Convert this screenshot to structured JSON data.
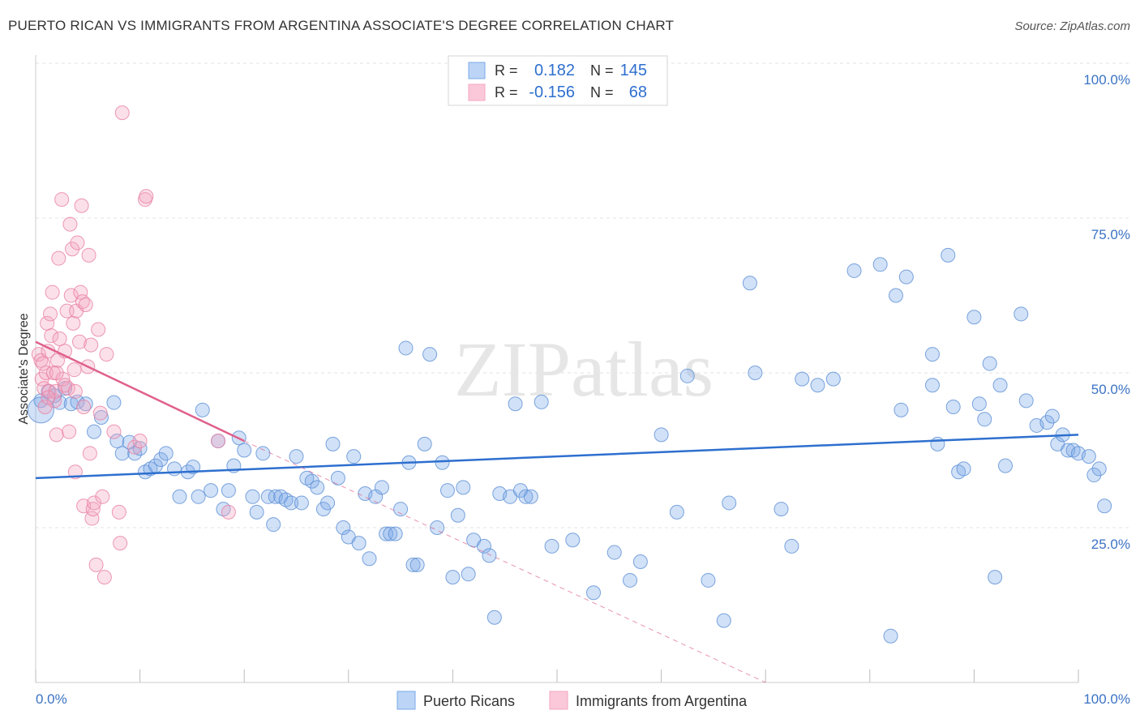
{
  "chart_data": {
    "type": "scatter",
    "title": "PUERTO RICAN VS IMMIGRANTS FROM ARGENTINA ASSOCIATE'S DEGREE CORRELATION CHART",
    "source": "Source: ZipAtlas.com",
    "xlabel": "",
    "ylabel": "Associate's Degree",
    "xlim": [
      0,
      100
    ],
    "ylim": [
      0,
      100
    ],
    "x_tick_labels": {
      "min": "0.0%",
      "max": "100.0%"
    },
    "y_tick_labels": [
      "25.0%",
      "50.0%",
      "75.0%",
      "100.0%"
    ],
    "y_ticks": [
      25,
      50,
      75,
      100
    ],
    "grid": true,
    "watermark": "ZIPatlas",
    "legend": {
      "position": "top-center",
      "rows": [
        {
          "r_label": "R =",
          "r_value": "0.182",
          "n_label": "N =",
          "n_value": "145"
        },
        {
          "r_label": "R =",
          "r_value": "-0.156",
          "n_label": "N =",
          "n_value": "68"
        }
      ]
    },
    "series": [
      {
        "name": "Puerto Ricans",
        "color": "#7aaae8",
        "stroke": "#5b8fd6",
        "trend_color": "#2e6fcf",
        "trend": {
          "x": [
            0,
            100
          ],
          "y": [
            33.0,
            40.0
          ]
        },
        "points": [
          [
            0.5,
            45.5
          ],
          [
            1.2,
            47.0
          ],
          [
            1.8,
            46.3
          ],
          [
            2.3,
            45.2
          ],
          [
            2.8,
            47.5
          ],
          [
            3.4,
            45.0
          ],
          [
            4.0,
            45.3
          ],
          [
            4.8,
            45.0
          ],
          [
            5.6,
            40.5
          ],
          [
            6.3,
            42.8
          ],
          [
            7.5,
            45.2
          ],
          [
            7.8,
            39.0
          ],
          [
            8.3,
            37.0
          ],
          [
            9.0,
            38.8
          ],
          [
            9.5,
            37.0
          ],
          [
            10.0,
            37.8
          ],
          [
            10.5,
            34.0
          ],
          [
            11.0,
            34.5
          ],
          [
            11.5,
            35.0
          ],
          [
            12.0,
            36.0
          ],
          [
            12.5,
            37.0
          ],
          [
            13.3,
            34.5
          ],
          [
            13.8,
            30.0
          ],
          [
            14.6,
            34.0
          ],
          [
            15.1,
            34.8
          ],
          [
            15.6,
            30.0
          ],
          [
            16.0,
            44.0
          ],
          [
            16.8,
            31.0
          ],
          [
            17.5,
            39.0
          ],
          [
            18.0,
            28.0
          ],
          [
            18.5,
            31.0
          ],
          [
            19.0,
            35.0
          ],
          [
            19.5,
            39.5
          ],
          [
            20.0,
            37.5
          ],
          [
            20.8,
            30.0
          ],
          [
            21.2,
            27.5
          ],
          [
            21.8,
            37.0
          ],
          [
            22.3,
            30.0
          ],
          [
            22.8,
            25.5
          ],
          [
            23.0,
            30.0
          ],
          [
            23.5,
            30.0
          ],
          [
            24.0,
            29.5
          ],
          [
            24.5,
            29.0
          ],
          [
            25.0,
            36.5
          ],
          [
            25.5,
            29.0
          ],
          [
            26.0,
            33.0
          ],
          [
            26.5,
            32.5
          ],
          [
            27.0,
            31.5
          ],
          [
            27.6,
            28.0
          ],
          [
            28.0,
            29.0
          ],
          [
            28.5,
            38.5
          ],
          [
            29.0,
            33.0
          ],
          [
            29.5,
            25.0
          ],
          [
            30.0,
            23.5
          ],
          [
            30.5,
            36.5
          ],
          [
            31.0,
            22.5
          ],
          [
            31.6,
            30.5
          ],
          [
            32.0,
            20.0
          ],
          [
            32.6,
            30.0
          ],
          [
            33.2,
            31.5
          ],
          [
            33.6,
            24.0
          ],
          [
            34.0,
            24.0
          ],
          [
            34.5,
            24.0
          ],
          [
            35.0,
            28.0
          ],
          [
            35.5,
            54.0
          ],
          [
            35.8,
            35.5
          ],
          [
            36.2,
            19.0
          ],
          [
            36.6,
            19.0
          ],
          [
            37.3,
            38.5
          ],
          [
            37.8,
            53.0
          ],
          [
            38.5,
            25.0
          ],
          [
            39.0,
            35.5
          ],
          [
            39.5,
            31.0
          ],
          [
            40.0,
            17.0
          ],
          [
            40.5,
            27.0
          ],
          [
            41.0,
            31.5
          ],
          [
            41.5,
            17.5
          ],
          [
            42.0,
            23.0
          ],
          [
            43.0,
            22.0
          ],
          [
            43.5,
            20.5
          ],
          [
            44.0,
            10.5
          ],
          [
            44.5,
            30.5
          ],
          [
            45.5,
            30.0
          ],
          [
            46.0,
            45.0
          ],
          [
            46.5,
            31.0
          ],
          [
            47.0,
            30.0
          ],
          [
            47.5,
            30.0
          ],
          [
            48.5,
            45.3
          ],
          [
            49.5,
            22.0
          ],
          [
            51.5,
            23.0
          ],
          [
            53.5,
            14.5
          ],
          [
            55.5,
            21.0
          ],
          [
            57.0,
            16.5
          ],
          [
            58.0,
            19.5
          ],
          [
            60.0,
            40.0
          ],
          [
            61.5,
            27.5
          ],
          [
            62.5,
            49.5
          ],
          [
            64.5,
            16.5
          ],
          [
            66.0,
            10.0
          ],
          [
            66.5,
            29.0
          ],
          [
            68.5,
            64.5
          ],
          [
            69.0,
            50.0
          ],
          [
            71.5,
            28.0
          ],
          [
            72.5,
            22.0
          ],
          [
            73.5,
            49.0
          ],
          [
            75.0,
            48.0
          ],
          [
            76.5,
            49.0
          ],
          [
            78.5,
            66.5
          ],
          [
            81.0,
            67.5
          ],
          [
            82.0,
            7.5
          ],
          [
            82.5,
            62.5
          ],
          [
            83.0,
            44.0
          ],
          [
            83.5,
            65.5
          ],
          [
            86.0,
            53.0
          ],
          [
            86.0,
            48.0
          ],
          [
            86.5,
            38.5
          ],
          [
            87.5,
            69.0
          ],
          [
            88.0,
            44.5
          ],
          [
            88.5,
            34.0
          ],
          [
            89.0,
            34.5
          ],
          [
            90.0,
            59.0
          ],
          [
            90.5,
            45.0
          ],
          [
            91.0,
            42.5
          ],
          [
            91.5,
            51.5
          ],
          [
            92.0,
            17.0
          ],
          [
            92.5,
            48.0
          ],
          [
            93.0,
            35.0
          ],
          [
            94.5,
            59.5
          ],
          [
            95.0,
            45.5
          ],
          [
            96.0,
            41.5
          ],
          [
            97.0,
            42.0
          ],
          [
            97.5,
            43.0
          ],
          [
            98.0,
            38.5
          ],
          [
            98.5,
            40.0
          ],
          [
            99.0,
            37.5
          ],
          [
            99.5,
            37.5
          ],
          [
            100.0,
            37.0
          ],
          [
            101.0,
            36.5
          ],
          [
            101.5,
            33.5
          ],
          [
            102.0,
            34.5
          ],
          [
            102.5,
            28.5
          ]
        ]
      },
      {
        "name": "Immigrants from Argentina",
        "color": "#f4a6c0",
        "stroke": "#e880a2",
        "trend_color": "#e0608c",
        "trend": {
          "x": [
            0,
            20
          ],
          "y": [
            55.0,
            39.0
          ]
        },
        "trend_dashed": {
          "x": [
            20,
            70
          ],
          "y": [
            39.0,
            0.0
          ]
        },
        "points": [
          [
            0.3,
            53.0
          ],
          [
            0.5,
            52.0
          ],
          [
            0.6,
            49.0
          ],
          [
            0.8,
            47.5
          ],
          [
            0.9,
            44.5
          ],
          [
            1.0,
            50.0
          ],
          [
            1.1,
            58.0
          ],
          [
            1.2,
            53.5
          ],
          [
            1.3,
            47.0
          ],
          [
            1.4,
            59.5
          ],
          [
            1.5,
            56.0
          ],
          [
            1.6,
            63.0
          ],
          [
            1.7,
            50.0
          ],
          [
            1.8,
            45.5
          ],
          [
            1.9,
            47.0
          ],
          [
            2.0,
            40.0
          ],
          [
            2.1,
            52.0
          ],
          [
            2.2,
            68.5
          ],
          [
            2.3,
            55.5
          ],
          [
            2.5,
            78.0
          ],
          [
            2.6,
            49.0
          ],
          [
            2.8,
            53.5
          ],
          [
            3.0,
            60.0
          ],
          [
            3.1,
            47.5
          ],
          [
            3.2,
            40.5
          ],
          [
            3.3,
            74.0
          ],
          [
            3.4,
            62.5
          ],
          [
            3.5,
            70.0
          ],
          [
            3.6,
            58.0
          ],
          [
            3.7,
            50.5
          ],
          [
            3.8,
            34.0
          ],
          [
            3.9,
            60.0
          ],
          [
            4.0,
            71.0
          ],
          [
            4.2,
            55.0
          ],
          [
            4.3,
            63.0
          ],
          [
            4.4,
            77.0
          ],
          [
            4.5,
            61.5
          ],
          [
            4.6,
            28.5
          ],
          [
            4.8,
            61.0
          ],
          [
            5.0,
            51.0
          ],
          [
            5.1,
            69.0
          ],
          [
            5.2,
            37.0
          ],
          [
            5.3,
            54.5
          ],
          [
            5.4,
            26.5
          ],
          [
            5.5,
            28.0
          ],
          [
            5.6,
            29.0
          ],
          [
            5.8,
            19.0
          ],
          [
            6.0,
            57.0
          ],
          [
            6.2,
            43.5
          ],
          [
            6.4,
            30.0
          ],
          [
            6.6,
            17.0
          ],
          [
            6.8,
            53.0
          ],
          [
            7.5,
            40.5
          ],
          [
            8.0,
            27.5
          ],
          [
            8.1,
            22.5
          ],
          [
            8.3,
            92.0
          ],
          [
            9.5,
            38.0
          ],
          [
            10.0,
            39.0
          ],
          [
            10.5,
            78.0
          ],
          [
            10.6,
            78.5
          ],
          [
            17.5,
            39.0
          ],
          [
            18.5,
            27.5
          ],
          [
            2.0,
            50.0
          ],
          [
            2.8,
            48.0
          ],
          [
            1.2,
            46.0
          ],
          [
            0.7,
            51.5
          ],
          [
            3.8,
            47.0
          ],
          [
            4.6,
            44.5
          ]
        ]
      }
    ]
  }
}
